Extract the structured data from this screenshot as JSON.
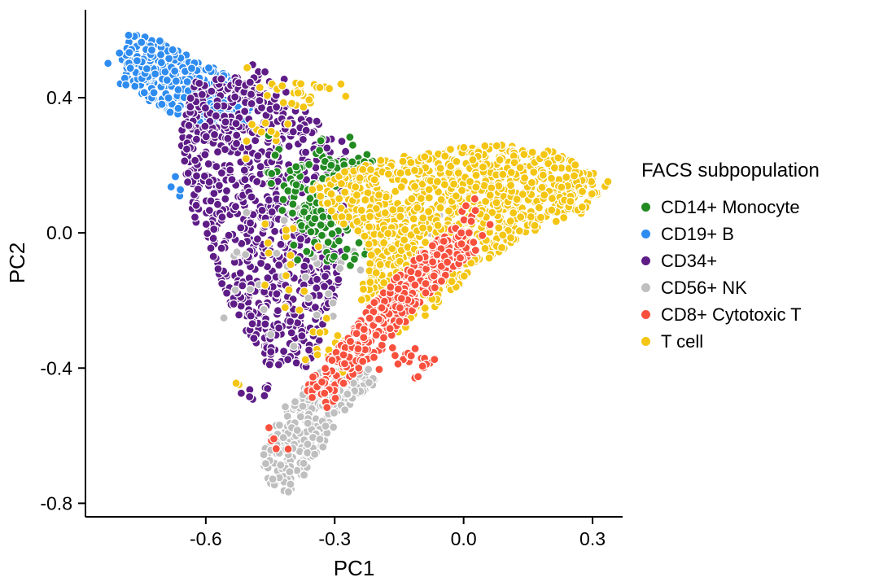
{
  "chart_data": {
    "type": "scatter",
    "title": "",
    "xlabel": "PC1",
    "ylabel": "PC2",
    "xlim": [
      -0.88,
      0.37
    ],
    "ylim": [
      -0.84,
      0.66
    ],
    "grid": false,
    "background": "#ffffff",
    "axis_color": "#000000",
    "point_radius_px": 5,
    "point_stroke": "#ffffff",
    "seed": 42,
    "legend_title": "FACS subpopulation",
    "legend_position": "right",
    "x_ticks": [
      {
        "value": -0.6,
        "label": "-0.6"
      },
      {
        "value": -0.3,
        "label": "-0.3"
      },
      {
        "value": 0.0,
        "label": "0.0"
      },
      {
        "value": 0.3,
        "label": "0.3"
      }
    ],
    "y_ticks": [
      {
        "value": 0.4,
        "label": "0.4"
      },
      {
        "value": 0.0,
        "label": "0.0"
      },
      {
        "value": -0.4,
        "label": "-0.4"
      },
      {
        "value": -0.8,
        "label": "-0.8"
      }
    ],
    "draw_order": [
      "CD19+ B",
      "CD34+",
      "CD56+ NK",
      "CD14+ Monocyte",
      "T cell",
      "CD8+ Cytotoxic T"
    ],
    "series": [
      {
        "name": "CD14+ Monocyte",
        "color": "#228B22",
        "n_points": 160,
        "regions": [
          {
            "type": "gauss",
            "cx": -0.36,
            "cy": 0.1,
            "sx": 0.045,
            "sy": 0.07,
            "n": 75
          },
          {
            "type": "gauss",
            "cx": -0.31,
            "cy": 0.0,
            "sx": 0.04,
            "sy": 0.04,
            "n": 35
          },
          {
            "type": "gauss",
            "cx": -0.29,
            "cy": 0.2,
            "sx": 0.035,
            "sy": 0.03,
            "n": 30
          },
          {
            "type": "gauss",
            "cx": -0.22,
            "cy": 0.21,
            "sx": 0.015,
            "sy": 0.015,
            "n": 6
          },
          {
            "type": "gauss",
            "cx": -0.44,
            "cy": 0.2,
            "sx": 0.02,
            "sy": 0.02,
            "n": 6
          },
          {
            "type": "gauss",
            "cx": -0.25,
            "cy": -0.05,
            "sx": 0.02,
            "sy": 0.02,
            "n": 8
          }
        ]
      },
      {
        "name": "CD19+ B",
        "color": "#2E8CF0",
        "n_points": 366,
        "regions": [
          {
            "type": "poly",
            "n": 300,
            "pts": [
              [
                -0.79,
                0.6
              ],
              [
                -0.62,
                0.52
              ],
              [
                -0.47,
                0.4
              ],
              [
                -0.52,
                0.3
              ],
              [
                -0.66,
                0.34
              ],
              [
                -0.8,
                0.44
              ]
            ]
          },
          {
            "type": "gauss",
            "cx": -0.74,
            "cy": 0.5,
            "sx": 0.03,
            "sy": 0.04,
            "n": 60
          },
          {
            "type": "gauss",
            "cx": -0.66,
            "cy": 0.13,
            "sx": 0.015,
            "sy": 0.02,
            "n": 4
          },
          {
            "type": "gauss",
            "cx": -0.26,
            "cy": 0.17,
            "sx": 0.01,
            "sy": 0.01,
            "n": 2
          }
        ]
      },
      {
        "name": "CD34+",
        "color": "#5E1C87",
        "n_points": 998,
        "regions": [
          {
            "type": "poly",
            "n": 950,
            "pts": [
              [
                -0.63,
                0.45
              ],
              [
                -0.48,
                0.45
              ],
              [
                -0.33,
                0.33
              ],
              [
                -0.24,
                0.22
              ],
              [
                -0.26,
                0.02
              ],
              [
                -0.3,
                -0.2
              ],
              [
                -0.36,
                -0.4
              ],
              [
                -0.46,
                -0.4
              ],
              [
                -0.55,
                -0.2
              ],
              [
                -0.63,
                0.05
              ],
              [
                -0.66,
                0.28
              ]
            ]
          },
          {
            "type": "gauss",
            "cx": -0.5,
            "cy": 0.43,
            "sx": 0.04,
            "sy": 0.03,
            "n": 40
          },
          {
            "type": "gauss",
            "cx": -0.49,
            "cy": -0.46,
            "sx": 0.03,
            "sy": 0.02,
            "n": 8
          }
        ]
      },
      {
        "name": "CD56+ NK",
        "color": "#BFBFBF",
        "n_points": 350,
        "regions": [
          {
            "type": "poly",
            "n": 310,
            "pts": [
              [
                -0.22,
                -0.4
              ],
              [
                -0.33,
                -0.4
              ],
              [
                -0.42,
                -0.52
              ],
              [
                -0.47,
                -0.66
              ],
              [
                -0.46,
                -0.75
              ],
              [
                -0.4,
                -0.77
              ],
              [
                -0.34,
                -0.66
              ],
              [
                -0.26,
                -0.5
              ],
              [
                -0.19,
                -0.43
              ]
            ]
          },
          {
            "type": "gauss",
            "cx": -0.45,
            "cy": -0.05,
            "sx": 0.06,
            "sy": 0.12,
            "n": 20
          },
          {
            "type": "gauss",
            "cx": -0.3,
            "cy": -0.15,
            "sx": 0.04,
            "sy": 0.06,
            "n": 10
          },
          {
            "type": "gauss",
            "cx": -0.2,
            "cy": -0.08,
            "sx": 0.03,
            "sy": 0.04,
            "n": 6
          },
          {
            "type": "gauss",
            "cx": -0.05,
            "cy": 0.05,
            "sx": 0.03,
            "sy": 0.03,
            "n": 4
          }
        ]
      },
      {
        "name": "CD8+ Cytotoxic T",
        "color": "#F9503E",
        "n_points": 435,
        "regions": [
          {
            "type": "poly",
            "n": 400,
            "pts": [
              [
                -0.02,
                0.02
              ],
              [
                0.04,
                -0.04
              ],
              [
                -0.04,
                -0.13
              ],
              [
                -0.14,
                -0.27
              ],
              [
                -0.24,
                -0.42
              ],
              [
                -0.32,
                -0.52
              ],
              [
                -0.38,
                -0.46
              ],
              [
                -0.28,
                -0.32
              ],
              [
                -0.18,
                -0.16
              ],
              [
                -0.1,
                -0.06
              ]
            ]
          },
          {
            "type": "gauss",
            "cx": 0.02,
            "cy": 0.05,
            "sx": 0.025,
            "sy": 0.025,
            "n": 10
          },
          {
            "type": "gauss",
            "cx": -0.12,
            "cy": -0.38,
            "sx": 0.03,
            "sy": 0.03,
            "n": 20
          },
          {
            "type": "gauss",
            "cx": -0.43,
            "cy": -0.62,
            "sx": 0.015,
            "sy": 0.02,
            "n": 5
          }
        ]
      },
      {
        "name": "T cell",
        "color": "#F4C613",
        "n_points": 1222,
        "regions": [
          {
            "type": "poly",
            "n": 1150,
            "pts": [
              [
                -0.36,
                0.14
              ],
              [
                -0.25,
                0.2
              ],
              [
                -0.1,
                0.24
              ],
              [
                0.05,
                0.27
              ],
              [
                0.22,
                0.24
              ],
              [
                0.34,
                0.15
              ],
              [
                0.28,
                0.06
              ],
              [
                0.12,
                -0.02
              ],
              [
                0.0,
                -0.14
              ],
              [
                -0.15,
                -0.32
              ],
              [
                -0.24,
                -0.2
              ],
              [
                -0.22,
                -0.04
              ],
              [
                -0.3,
                0.04
              ]
            ]
          },
          {
            "type": "gauss",
            "cx": -0.38,
            "cy": 0.42,
            "sx": 0.05,
            "sy": 0.04,
            "n": 30
          },
          {
            "type": "gauss",
            "cx": -0.45,
            "cy": 0.3,
            "sx": 0.03,
            "sy": 0.03,
            "n": 10
          },
          {
            "type": "gauss",
            "cx": -0.33,
            "cy": -0.35,
            "sx": 0.03,
            "sy": 0.04,
            "n": 15
          },
          {
            "type": "gauss",
            "cx": -0.42,
            "cy": -0.12,
            "sx": 0.04,
            "sy": 0.1,
            "n": 15
          },
          {
            "type": "gauss",
            "cx": -0.52,
            "cy": -0.44,
            "sx": 0.01,
            "sy": 0.01,
            "n": 2
          }
        ]
      }
    ]
  }
}
